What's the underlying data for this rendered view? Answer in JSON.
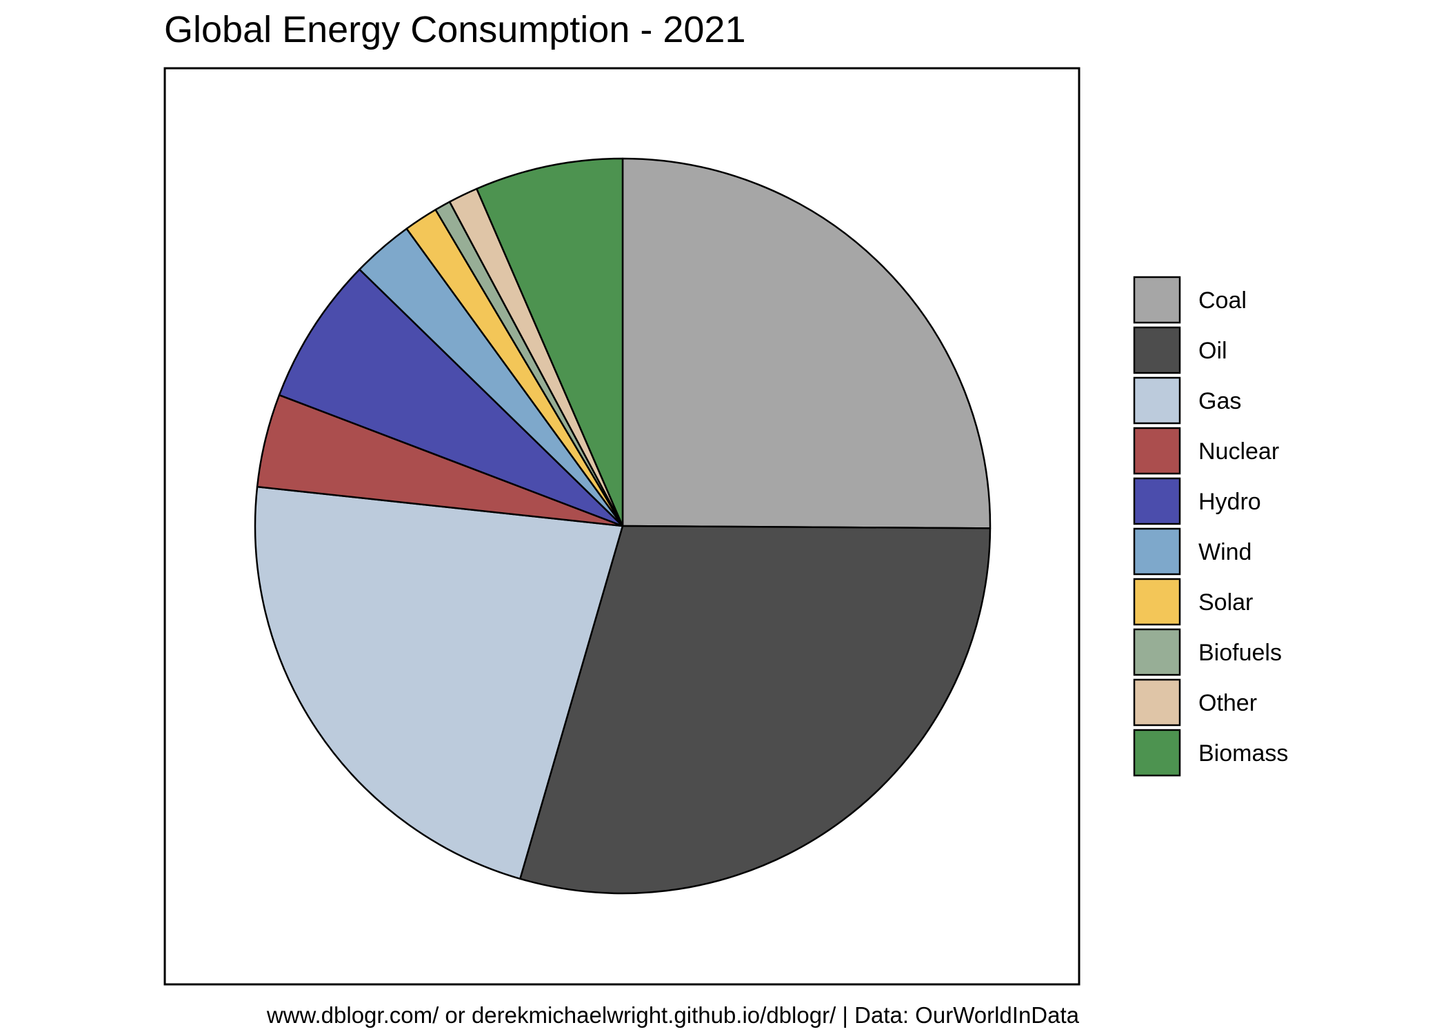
{
  "chart_data": {
    "type": "pie",
    "title": "Global Energy Consumption - 2021",
    "caption": "www.dblogr.com/ or derekmichaelwright.github.io/dblogr/ | Data: OurWorldInData",
    "start_angle_deg": 0,
    "direction": "clockwise",
    "legend_position": "right",
    "categories": [
      "Coal",
      "Oil",
      "Gas",
      "Nuclear",
      "Hydro",
      "Wind",
      "Solar",
      "Biofuels",
      "Other",
      "Biomass"
    ],
    "values": [
      25.1,
      29.4,
      22.2,
      4.1,
      6.5,
      2.7,
      1.5,
      0.7,
      1.3,
      6.5
    ],
    "colors": [
      "#a6a6a6",
      "#4d4d4d",
      "#bccbdc",
      "#ab4e4e",
      "#4b4dac",
      "#7ea8cb",
      "#f3c658",
      "#97ae96",
      "#dfc5a7",
      "#4d9350"
    ]
  }
}
